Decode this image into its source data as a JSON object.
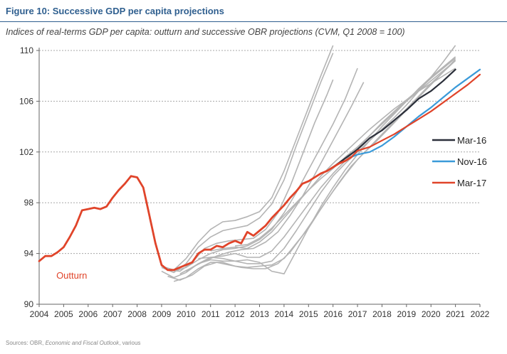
{
  "title": "Figure 10:  Successive GDP per capita projections",
  "subtitle": "Indices of real-terms GDP per capita: outturn and successive OBR projections (CVM, Q1 2008 = 100)",
  "source": {
    "prefix": "Sources: OBR, ",
    "italic": "Economic and Fiscal Outlook",
    "suffix": ", various"
  },
  "chart_data": {
    "type": "line",
    "title": "Successive GDP per capita projections",
    "xlim": [
      2004,
      2022
    ],
    "ylim": [
      90,
      110
    ],
    "x_ticks": [
      2004,
      2005,
      2006,
      2007,
      2008,
      2009,
      2010,
      2011,
      2012,
      2013,
      2014,
      2015,
      2016,
      2017,
      2018,
      2019,
      2020,
      2021,
      2022
    ],
    "y_ticks": [
      90,
      94,
      98,
      102,
      106,
      110
    ],
    "grid": "horizontal",
    "legend": "right",
    "colors": {
      "outturn": "#e0442a",
      "mar16": "#2b2f3a",
      "nov16": "#3a9ad9",
      "mar17": "#e0442a",
      "previous": "#b4b4b4"
    },
    "annotations": [
      {
        "text": "Outturn",
        "x": 2004.7,
        "y": 92.3,
        "color": "#e0442a"
      }
    ],
    "series": [
      {
        "name": "Outturn",
        "role": "outturn",
        "x": [
          2004.0,
          2004.25,
          2004.5,
          2004.75,
          2005.0,
          2005.25,
          2005.5,
          2005.75,
          2006.0,
          2006.25,
          2006.5,
          2006.75,
          2007.0,
          2007.25,
          2007.5,
          2007.75,
          2008.0,
          2008.25,
          2008.5,
          2008.75,
          2009.0,
          2009.25,
          2009.5,
          2009.75,
          2010.0,
          2010.25,
          2010.5,
          2010.75,
          2011.0,
          2011.25,
          2011.5,
          2011.75,
          2012.0,
          2012.25,
          2012.5,
          2012.75,
          2013.0,
          2013.25,
          2013.5,
          2013.75,
          2014.0,
          2014.25,
          2014.5,
          2014.75,
          2015.0,
          2015.25,
          2015.5,
          2015.75,
          2016.0,
          2016.25,
          2016.5,
          2016.75
        ],
        "y": [
          93.4,
          93.8,
          93.8,
          94.1,
          94.5,
          95.3,
          96.2,
          97.4,
          97.5,
          97.6,
          97.5,
          97.7,
          98.4,
          99.0,
          99.5,
          100.1,
          100.0,
          99.2,
          97.0,
          94.8,
          93.1,
          92.7,
          92.7,
          92.9,
          93.1,
          93.3,
          94.0,
          94.3,
          94.3,
          94.6,
          94.5,
          94.8,
          95.0,
          94.8,
          95.7,
          95.4,
          95.8,
          96.2,
          96.8,
          97.3,
          97.8,
          98.4,
          98.9,
          99.5,
          99.7,
          100.0,
          100.3,
          100.5,
          100.8,
          101.1,
          101.3,
          101.6
        ]
      },
      {
        "name": "Mar-16",
        "role": "mar16",
        "x": [
          2016.0,
          2016.5,
          2017.0,
          2017.5,
          2018.0,
          2018.5,
          2019.0,
          2019.5,
          2020.0,
          2020.5,
          2021.0
        ],
        "y": [
          100.8,
          101.5,
          102.2,
          103.1,
          103.7,
          104.5,
          105.3,
          106.2,
          106.8,
          107.6,
          108.5
        ]
      },
      {
        "name": "Nov-16",
        "role": "nov16",
        "x": [
          2016.75,
          2017.0,
          2017.5,
          2018.0,
          2018.5,
          2019.0,
          2019.5,
          2020.0,
          2020.5,
          2021.0,
          2021.5,
          2022.0
        ],
        "y": [
          101.6,
          101.8,
          102.0,
          102.5,
          103.2,
          104.0,
          104.8,
          105.5,
          106.3,
          107.1,
          107.8,
          108.5
        ]
      },
      {
        "name": "Mar-17",
        "role": "mar17",
        "x": [
          2016.75,
          2017.0,
          2017.5,
          2018.0,
          2018.5,
          2019.0,
          2019.5,
          2020.0,
          2020.5,
          2021.0,
          2021.5,
          2022.0
        ],
        "y": [
          101.6,
          102.1,
          102.4,
          102.9,
          103.4,
          104.0,
          104.6,
          105.2,
          105.9,
          106.6,
          107.3,
          108.1
        ]
      },
      {
        "role": "previous",
        "x": [
          2008.5,
          2009.0,
          2009.5,
          2010.0,
          2010.5,
          2011.0,
          2011.5,
          2012.0,
          2012.5,
          2013.0,
          2013.5,
          2014.0,
          2014.5,
          2015.0,
          2015.5,
          2016.0
        ],
        "y": [
          96.8,
          93.0,
          92.7,
          93.6,
          94.9,
          95.9,
          96.5,
          96.6,
          96.9,
          97.3,
          98.4,
          100.5,
          103.0,
          105.5,
          108.0,
          110.4
        ]
      },
      {
        "role": "previous",
        "x": [
          2009.0,
          2009.5,
          2010.0,
          2010.5,
          2011.0,
          2011.5,
          2012.0,
          2012.5,
          2013.0,
          2013.5,
          2014.0,
          2014.5,
          2015.0,
          2015.5,
          2016.0
        ],
        "y": [
          92.9,
          92.5,
          93.2,
          94.5,
          95.3,
          95.8,
          96.0,
          96.2,
          96.8,
          97.9,
          99.8,
          102.5,
          105.0,
          107.5,
          109.8
        ]
      },
      {
        "role": "previous",
        "x": [
          2009.25,
          2009.75,
          2010.25,
          2010.75,
          2011.25,
          2011.75,
          2012.25,
          2012.75,
          2013.25,
          2013.75,
          2014.25,
          2014.75,
          2015.25,
          2015.75,
          2016.0
        ],
        "y": [
          92.7,
          92.6,
          93.3,
          94.4,
          94.8,
          95.0,
          95.1,
          95.2,
          95.9,
          97.2,
          99.3,
          101.8,
          104.3,
          106.5,
          107.7
        ]
      },
      {
        "role": "previous",
        "x": [
          2009.5,
          2010.0,
          2010.5,
          2011.0,
          2011.5,
          2012.0,
          2012.5,
          2013.0,
          2013.5,
          2014.0,
          2014.5,
          2015.0,
          2015.5,
          2016.0,
          2016.5,
          2017.0
        ],
        "y": [
          92.6,
          92.9,
          93.5,
          94.0,
          94.3,
          94.4,
          94.6,
          95.1,
          95.9,
          97.2,
          98.8,
          100.6,
          102.4,
          104.2,
          106.2,
          108.6
        ]
      },
      {
        "role": "previous",
        "x": [
          2009.75,
          2010.25,
          2010.75,
          2011.25,
          2011.75,
          2012.25,
          2012.75,
          2013.25,
          2013.75,
          2014.25,
          2014.75,
          2015.25,
          2015.75,
          2016.25,
          2016.75,
          2017.25
        ],
        "y": [
          92.4,
          92.9,
          93.4,
          93.8,
          94.1,
          94.3,
          94.4,
          94.9,
          95.7,
          97.0,
          98.5,
          100.2,
          102.0,
          103.8,
          105.6,
          107.5
        ]
      },
      {
        "role": "previous",
        "x": [
          2009.0,
          2009.5,
          2010.0,
          2010.5,
          2011.0,
          2011.5,
          2012.0,
          2012.5,
          2013.0,
          2013.5,
          2014.0,
          2014.5,
          2015.0,
          2015.5,
          2016.0,
          2016.5,
          2017.0,
          2017.5,
          2018.0,
          2018.5,
          2019.0,
          2019.5,
          2020.0,
          2020.5,
          2021.0
        ],
        "y": [
          92.6,
          92.1,
          92.5,
          93.2,
          93.7,
          93.6,
          93.4,
          93.2,
          93.2,
          93.4,
          94.4,
          95.8,
          97.3,
          98.8,
          100.1,
          101.1,
          102.0,
          102.9,
          103.8,
          104.7,
          105.7,
          106.8,
          107.9,
          109.1,
          110.4
        ]
      },
      {
        "role": "previous",
        "x": [
          2009.25,
          2009.75,
          2010.25,
          2010.75,
          2011.25,
          2011.75,
          2012.25,
          2012.75,
          2013.25,
          2013.75,
          2014.25,
          2014.75,
          2015.25,
          2015.75,
          2016.25,
          2016.75,
          2017.25,
          2017.75,
          2018.25,
          2018.75,
          2019.25,
          2019.75,
          2020.25,
          2020.75,
          2021.0
        ],
        "y": [
          92.2,
          91.9,
          92.3,
          93.0,
          93.3,
          93.1,
          92.9,
          92.8,
          92.8,
          93.2,
          94.1,
          95.4,
          96.8,
          98.2,
          99.6,
          100.9,
          101.9,
          102.8,
          103.8,
          104.8,
          105.8,
          106.8,
          107.8,
          108.8,
          109.3
        ]
      },
      {
        "role": "previous",
        "x": [
          2009.5,
          2010.0,
          2010.5,
          2011.0,
          2011.5,
          2012.0,
          2012.5,
          2013.0,
          2013.5,
          2014.0,
          2014.5,
          2015.0,
          2015.5,
          2016.0,
          2016.5,
          2017.0,
          2017.5,
          2018.0,
          2018.5,
          2019.0,
          2019.5,
          2020.0,
          2020.5,
          2021.0
        ],
        "y": [
          91.8,
          92.1,
          92.8,
          93.3,
          93.3,
          93.0,
          92.9,
          93.0,
          93.1,
          93.6,
          94.8,
          96.0,
          97.5,
          98.9,
          100.2,
          101.4,
          102.4,
          103.4,
          104.4,
          105.4,
          106.4,
          107.4,
          108.3,
          109.2
        ]
      },
      {
        "role": "previous",
        "x": [
          2010.0,
          2010.5,
          2011.0,
          2011.5,
          2012.0,
          2012.5,
          2013.0,
          2013.5,
          2014.0,
          2014.5,
          2015.0,
          2015.5,
          2016.0,
          2016.5,
          2017.0,
          2017.5,
          2018.0,
          2018.5,
          2019.0,
          2019.5,
          2020.0,
          2020.5,
          2021.0
        ],
        "y": [
          92.6,
          93.2,
          93.5,
          93.4,
          93.4,
          93.5,
          93.3,
          92.6,
          92.4,
          94.2,
          96.0,
          97.7,
          99.2,
          100.6,
          101.8,
          102.9,
          104.0,
          105.0,
          106.0,
          107.0,
          107.9,
          108.7,
          109.5
        ]
      },
      {
        "role": "previous",
        "x": [
          2010.5,
          2011.0,
          2011.5,
          2012.0,
          2012.5,
          2013.0,
          2013.5,
          2014.0,
          2014.5,
          2015.0,
          2015.5,
          2016.0,
          2016.5,
          2017.0,
          2017.5,
          2018.0,
          2018.5,
          2019.0,
          2019.5,
          2020.0,
          2020.5,
          2021.0
        ],
        "y": [
          93.6,
          93.7,
          93.8,
          94.0,
          93.7,
          93.7,
          94.2,
          95.3,
          96.6,
          97.9,
          99.2,
          100.3,
          101.3,
          102.3,
          103.3,
          104.3,
          105.2,
          106.1,
          106.9,
          107.8,
          108.6,
          109.4
        ]
      },
      {
        "role": "previous",
        "x": [
          2011.0,
          2011.5,
          2012.0,
          2012.5,
          2013.0,
          2013.5,
          2014.0,
          2014.5,
          2015.0,
          2015.5,
          2016.0,
          2016.5,
          2017.0,
          2017.5,
          2018.0,
          2018.5,
          2019.0,
          2019.5,
          2020.0,
          2020.5,
          2021.0
        ],
        "y": [
          94.2,
          94.4,
          94.5,
          94.4,
          94.9,
          95.7,
          96.8,
          97.9,
          99.0,
          100.1,
          101.1,
          102.0,
          102.9,
          103.8,
          104.6,
          105.4,
          106.1,
          106.8,
          107.4,
          108.0,
          108.6
        ]
      },
      {
        "role": "previous",
        "x": [
          2012.0,
          2012.5,
          2013.0,
          2013.5,
          2014.0,
          2014.5,
          2015.0,
          2015.5,
          2016.0,
          2016.5,
          2017.0,
          2017.5,
          2018.0,
          2018.5,
          2019.0,
          2019.5,
          2020.0,
          2020.5,
          2021.0
        ],
        "y": [
          94.6,
          94.7,
          95.2,
          96.0,
          97.0,
          98.0,
          99.0,
          99.9,
          100.7,
          101.6,
          102.4,
          103.3,
          104.2,
          105.1,
          106.0,
          106.8,
          107.6,
          108.4,
          109.2
        ]
      }
    ]
  }
}
